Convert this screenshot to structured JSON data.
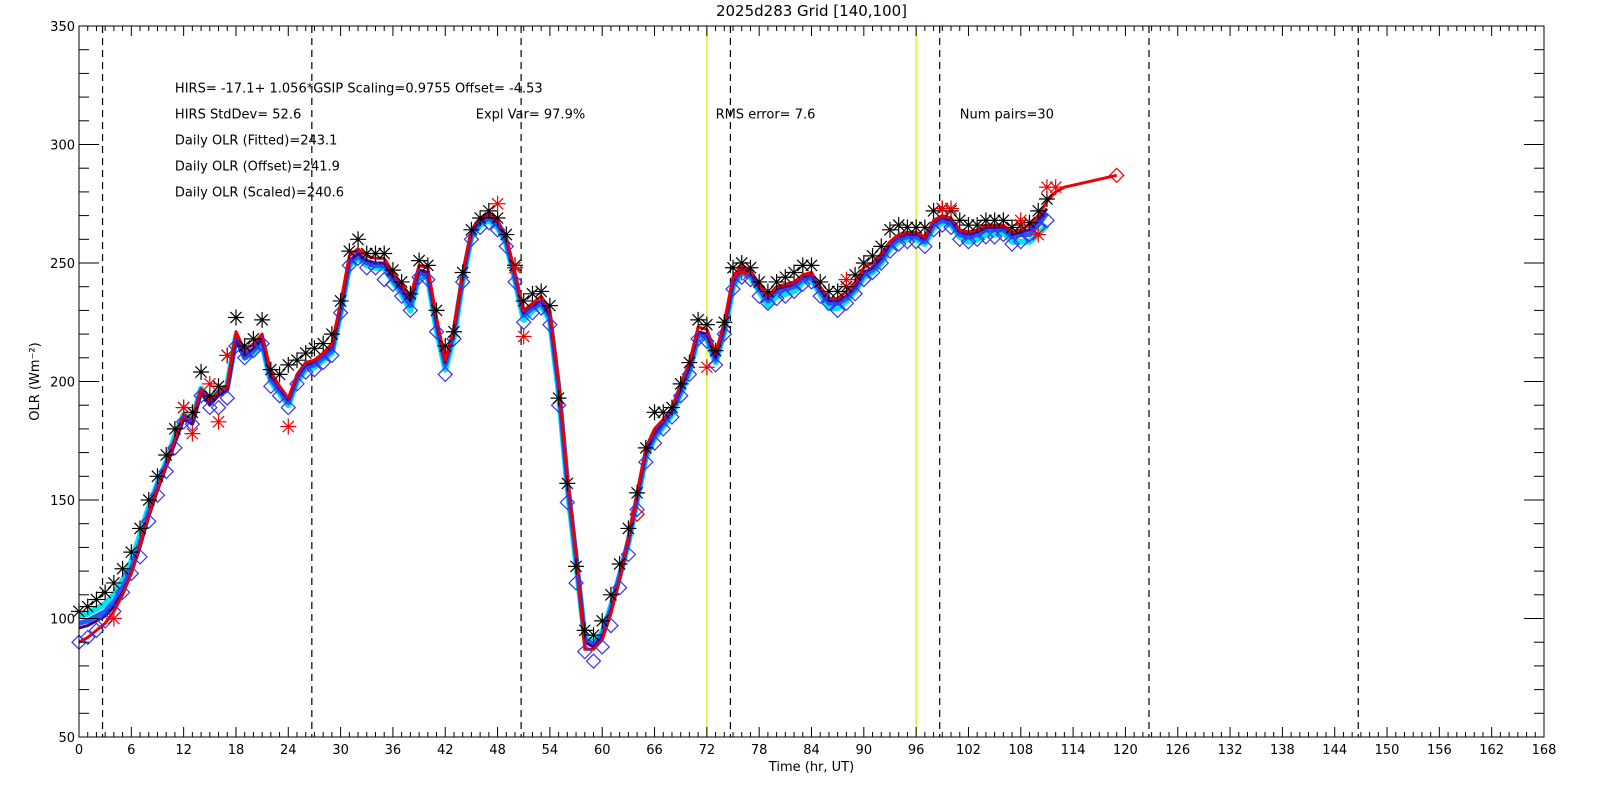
{
  "chart_data": {
    "type": "line",
    "title": "2025d283 Grid [140,100]",
    "xlabel": "Time (hr, UT)",
    "ylabel": "OLR (Wm⁻²)",
    "xlim": [
      0,
      168
    ],
    "ylim": [
      50,
      350
    ],
    "x_ticks": [
      0,
      6,
      12,
      18,
      24,
      30,
      36,
      42,
      48,
      54,
      60,
      66,
      72,
      78,
      84,
      90,
      96,
      102,
      108,
      114,
      120,
      126,
      132,
      138,
      144,
      150,
      156,
      162,
      168
    ],
    "y_ticks": [
      50,
      100,
      150,
      200,
      250,
      300,
      350
    ],
    "grid": false,
    "annotations": [
      {
        "text": "HIRS=  -17.1+  1.056*GSIP  Scaling=0.9755  Offset= -4.53",
        "x": 11,
        "y": 322
      },
      {
        "text": "HIRS StdDev= 52.6",
        "x": 11,
        "y": 311
      },
      {
        "text": "Expl Var= 97.9%",
        "x": 45.5,
        "y": 311
      },
      {
        "text": "RMS error=  7.6",
        "x": 73,
        "y": 311
      },
      {
        "text": "Num pairs=30",
        "x": 101,
        "y": 311
      },
      {
        "text": "Daily OLR (Fitted)=243.1",
        "x": 11,
        "y": 300
      },
      {
        "text": "Daily OLR (Offset)=241.9",
        "x": 11,
        "y": 289
      },
      {
        "text": "Daily OLR (Scaled)=240.6",
        "x": 11,
        "y": 278
      }
    ],
    "vertical_lines": {
      "dashed": [
        2.7,
        26.7,
        50.7,
        74.7,
        98.7,
        122.7,
        146.7
      ],
      "dashed_color": "#000000",
      "solid": [
        72,
        96
      ],
      "solid_color": "#ccff33"
    },
    "x": [
      0,
      1,
      2,
      3,
      4,
      5,
      6,
      7,
      8,
      9,
      10,
      11,
      12,
      13,
      14,
      15,
      16,
      17,
      18,
      19,
      20,
      21,
      22,
      23,
      24,
      25,
      26,
      27,
      28,
      29,
      30,
      31,
      32,
      33,
      34,
      35,
      36,
      37,
      38,
      39,
      40,
      41,
      42,
      43,
      44,
      45,
      46,
      47,
      48,
      49,
      50,
      51,
      52,
      53,
      54,
      55,
      56,
      57,
      58,
      59,
      60,
      61,
      62,
      63,
      64,
      65,
      66,
      67,
      68,
      69,
      70,
      71,
      72,
      73,
      74,
      75,
      76,
      77,
      78,
      79,
      80,
      81,
      82,
      83,
      84,
      85,
      86,
      87,
      88,
      89,
      90,
      91,
      92,
      93,
      94,
      95,
      96,
      97,
      98,
      99,
      100,
      101,
      102,
      103,
      104,
      105,
      106,
      107,
      108,
      109,
      110,
      111
    ],
    "series": [
      {
        "name": "",
        "color": "#00e5ee",
        "style": "line",
        "values": [
          101,
          102,
          104,
          106,
          110,
          116,
          124,
          135,
          147,
          157,
          166,
          177,
          186,
          184,
          197,
          192,
          196,
          198,
          219,
          210,
          212,
          216,
          200,
          195,
          190,
          200,
          205,
          206,
          209,
          212,
          229,
          249,
          252,
          249,
          248,
          248,
          242,
          237,
          230,
          245,
          244,
          222,
          205,
          219,
          243,
          261,
          266,
          268,
          265,
          258,
          243,
          226,
          230,
          232,
          226,
          196,
          156,
          124,
          92,
          90,
          94,
          105,
          118,
          132,
          150,
          168,
          176,
          181,
          186,
          195,
          204,
          219,
          218,
          208,
          221,
          240,
          246,
          244,
          238,
          232,
          236,
          237,
          238,
          242,
          243,
          237,
          231,
          231,
          234,
          238,
          244,
          246,
          250,
          256,
          259,
          260,
          260,
          258,
          265,
          267,
          266,
          261,
          259,
          260,
          262,
          262,
          263,
          259,
          259,
          259,
          262,
          266
        ]
      },
      {
        "name": "",
        "color": "#1e5cff",
        "style": "line",
        "values": [
          98,
          99,
          101,
          103,
          107,
          113,
          121,
          132,
          145,
          156,
          165,
          175,
          185,
          183,
          196,
          191,
          195,
          197,
          218,
          210,
          213,
          217,
          201,
          196,
          191,
          201,
          206,
          207,
          210,
          213,
          230,
          250,
          253,
          250,
          249,
          249,
          243,
          238,
          232,
          246,
          245,
          224,
          207,
          221,
          244,
          262,
          267,
          269,
          266,
          259,
          244,
          228,
          231,
          233,
          227,
          198,
          158,
          126,
          91,
          89,
          93,
          104,
          118,
          133,
          151,
          169,
          177,
          182,
          187,
          196,
          205,
          220,
          219,
          209,
          222,
          241,
          247,
          245,
          239,
          234,
          238,
          239,
          240,
          243,
          244,
          238,
          233,
          233,
          235,
          239,
          245,
          247,
          251,
          257,
          260,
          261,
          261,
          259,
          266,
          268,
          267,
          262,
          261,
          262,
          264,
          264,
          264,
          261,
          262,
          262,
          266,
          271
        ]
      },
      {
        "name": "",
        "color": "#4b0082",
        "style": "line",
        "values": [
          96,
          97,
          99,
          101,
          105,
          111,
          119,
          130,
          143,
          154,
          164,
          174,
          184,
          182,
          195,
          190,
          194,
          196,
          218,
          211,
          214,
          218,
          202,
          197,
          192,
          202,
          207,
          208,
          211,
          214,
          231,
          251,
          254,
          251,
          250,
          250,
          244,
          239,
          234,
          247,
          246,
          225,
          208,
          222,
          245,
          263,
          268,
          270,
          267,
          260,
          245,
          229,
          232,
          234,
          228,
          199,
          159,
          127,
          90,
          88,
          92,
          103,
          117,
          133,
          152,
          170,
          178,
          183,
          188,
          197,
          206,
          221,
          220,
          210,
          223,
          242,
          248,
          246,
          240,
          235,
          239,
          240,
          241,
          244,
          245,
          239,
          234,
          234,
          236,
          240,
          246,
          248,
          252,
          258,
          261,
          262,
          262,
          260,
          267,
          269,
          268,
          263,
          262,
          263,
          265,
          265,
          265,
          262,
          263,
          264,
          268,
          273
        ]
      },
      {
        "name": "",
        "color": "#ee0000",
        "style": "line",
        "values": [
          90,
          92,
          95,
          98,
          103,
          110,
          119,
          131,
          144,
          155,
          165,
          176,
          186,
          184,
          197,
          192,
          196,
          198,
          221,
          213,
          216,
          220,
          204,
          198,
          193,
          203,
          208,
          209,
          212,
          216,
          233,
          253,
          256,
          253,
          252,
          252,
          246,
          241,
          236,
          249,
          248,
          227,
          209,
          223,
          246,
          264,
          269,
          271,
          268,
          261,
          246,
          230,
          233,
          236,
          230,
          200,
          160,
          127,
          87,
          87,
          91,
          102,
          117,
          134,
          153,
          172,
          180,
          184,
          189,
          199,
          208,
          223,
          222,
          212,
          225,
          244,
          249,
          247,
          241,
          236,
          240,
          241,
          242,
          245,
          246,
          240,
          235,
          235,
          238,
          242,
          248,
          250,
          254,
          259,
          262,
          263,
          263,
          261,
          268,
          270,
          269,
          264,
          263,
          264,
          266,
          266,
          266,
          263,
          264,
          266,
          270,
          276
        ]
      }
    ],
    "extra_lines": [
      {
        "name": "",
        "color": "#ee0000",
        "x": [
          111,
          112,
          113,
          119
        ],
        "values": [
          276,
          280,
          282,
          287
        ]
      }
    ],
    "markers": [
      {
        "name": "",
        "symbol": "asterisk",
        "color": "#000000",
        "x": [
          0,
          1,
          2,
          3,
          4,
          5,
          6,
          7,
          8,
          9,
          10,
          11,
          12,
          13,
          14,
          15,
          16,
          17,
          18,
          19,
          20,
          21,
          22,
          23,
          24,
          25,
          26,
          27,
          28,
          29,
          30,
          31,
          32,
          33,
          34,
          35,
          36,
          37,
          38,
          39,
          40,
          41,
          42,
          43,
          44,
          45,
          46,
          47,
          48,
          49,
          50,
          51,
          52,
          53,
          54,
          55,
          56,
          57,
          58,
          59,
          60,
          61,
          62,
          63,
          64,
          65,
          66,
          67,
          68,
          69,
          70,
          71,
          72,
          73,
          74,
          75,
          76,
          77,
          78,
          79,
          80,
          81,
          82,
          83,
          84,
          85,
          86,
          87,
          88,
          89,
          90,
          91,
          92,
          93,
          94,
          95,
          96,
          97,
          98,
          99,
          100,
          101,
          102,
          103,
          104,
          105,
          106,
          107,
          108,
          109,
          110,
          111
        ],
        "values": [
          103,
          105,
          108,
          111,
          115,
          121,
          128,
          138,
          150,
          160,
          169,
          180,
          189,
          187,
          204,
          194,
          198,
          211,
          227,
          215,
          218,
          226,
          205,
          203,
          207,
          209,
          212,
          214,
          216,
          220,
          234,
          255,
          260,
          254,
          254,
          254,
          247,
          242,
          237,
          251,
          249,
          230,
          215,
          221,
          246,
          264,
          269,
          272,
          269,
          262,
          249,
          234,
          237,
          238,
          232,
          193,
          157,
          122,
          95,
          93,
          99,
          110,
          123,
          138,
          153,
          172,
          187,
          187,
          189,
          199,
          208,
          226,
          224,
          213,
          225,
          248,
          250,
          248,
          242,
          238,
          242,
          244,
          246,
          249,
          249,
          242,
          238,
          238,
          240,
          245,
          250,
          253,
          257,
          264,
          266,
          265,
          265,
          265,
          272,
          273,
          272,
          268,
          266,
          266,
          268,
          268,
          268,
          265,
          266,
          267,
          272,
          277
        ]
      },
      {
        "name": "",
        "symbol": "diamond",
        "color": "#3333ee",
        "x": [
          0,
          1,
          2,
          3,
          4,
          5,
          6,
          7,
          8,
          9,
          10,
          11,
          12,
          13,
          14,
          15,
          16,
          17,
          18,
          19,
          20,
          21,
          22,
          23,
          24,
          25,
          26,
          27,
          28,
          29,
          30,
          31,
          32,
          33,
          34,
          35,
          36,
          37,
          38,
          39,
          40,
          41,
          42,
          43,
          44,
          45,
          46,
          47,
          48,
          49,
          50,
          51,
          52,
          53,
          54,
          55,
          56,
          57,
          58,
          59,
          60,
          61,
          62,
          63,
          64,
          65,
          66,
          67,
          68,
          69,
          70,
          71,
          72,
          73,
          74,
          75,
          76,
          77,
          78,
          79,
          80,
          81,
          82,
          83,
          84,
          85,
          86,
          87,
          88,
          89,
          90,
          91,
          92,
          93,
          94,
          95,
          96,
          97,
          98,
          99,
          100,
          101,
          102,
          103,
          104,
          105,
          106,
          107,
          108,
          109,
          110,
          111
        ],
        "values": [
          90,
          92,
          95,
          99,
          103,
          111,
          119,
          126,
          141,
          152,
          162,
          172,
          183,
          182,
          194,
          189,
          189,
          193,
          215,
          210,
          213,
          216,
          198,
          194,
          189,
          199,
          204,
          205,
          208,
          211,
          229,
          249,
          252,
          248,
          248,
          243,
          241,
          236,
          230,
          244,
          243,
          221,
          203,
          218,
          242,
          260,
          265,
          267,
          264,
          257,
          242,
          225,
          229,
          231,
          224,
          190,
          149,
          115,
          86,
          82,
          88,
          97,
          113,
          127,
          146,
          166,
          174,
          180,
          185,
          194,
          203,
          218,
          217,
          207,
          220,
          239,
          244,
          243,
          236,
          233,
          235,
          236,
          238,
          241,
          242,
          236,
          233,
          230,
          233,
          237,
          243,
          246,
          250,
          255,
          258,
          259,
          259,
          257,
          264,
          266,
          265,
          260,
          259,
          260,
          261,
          261,
          262,
          258,
          259,
          262,
          265,
          268
        ]
      },
      {
        "name": "",
        "symbol": "asterisk",
        "color": "#ee0000",
        "x": [
          4,
          12,
          13,
          15,
          16,
          17,
          24,
          48,
          50,
          51,
          72,
          76,
          88,
          99,
          100,
          108,
          110,
          111,
          112
        ],
        "values": [
          100,
          189,
          178,
          199,
          183,
          211,
          181,
          275,
          248,
          219,
          206,
          246,
          243,
          273,
          273,
          268,
          262,
          282,
          282
        ]
      },
      {
        "name": "",
        "symbol": "diamond",
        "color": "#ee0000",
        "x": [
          64,
          119
        ],
        "values": [
          144,
          287
        ]
      }
    ]
  }
}
